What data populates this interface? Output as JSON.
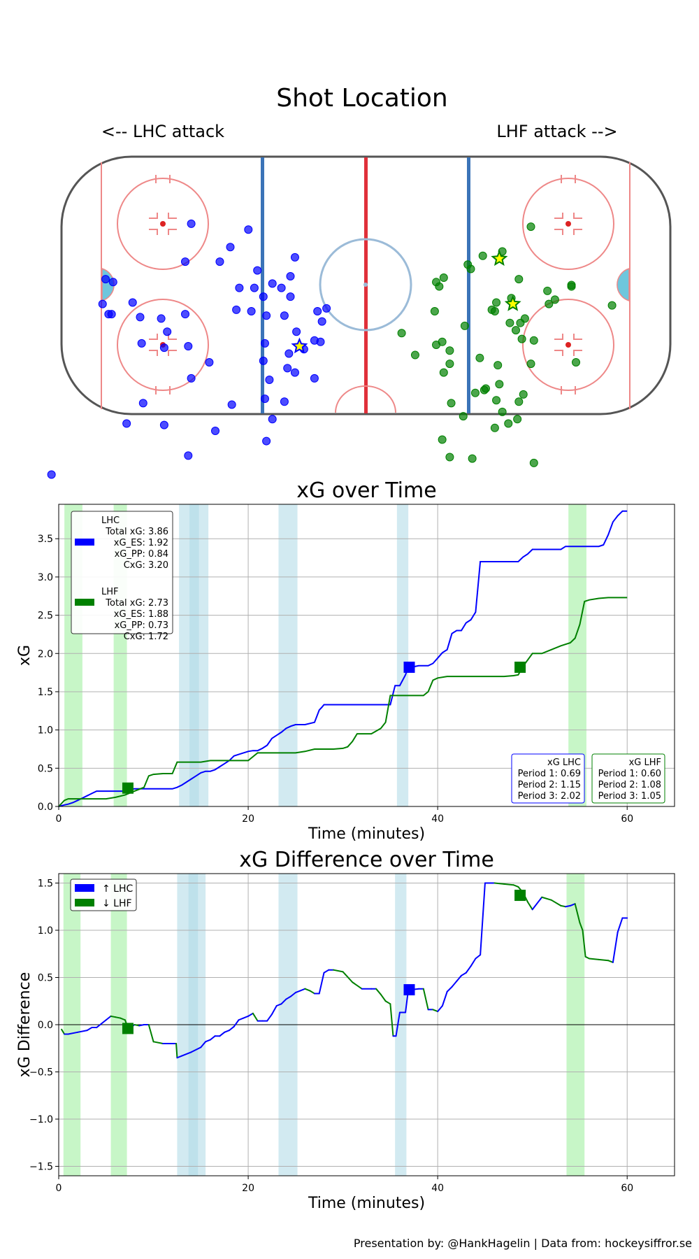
{
  "colors": {
    "lhc": "#0000ff",
    "lhf": "#008000",
    "pp_lhc": "#add8e6",
    "pp_lhf": "#90ee90",
    "goal_star": "#ffff00"
  },
  "rink": {
    "title": "Shot Location",
    "left_label": "<-- LHC attack",
    "right_label": "LHF attack -->",
    "lhc_shots": [
      [
        58.0,
        23.0
      ],
      [
        45.0,
        31.0
      ],
      [
        39.0,
        25.0
      ],
      [
        23.5,
        34.5
      ],
      [
        25.0,
        41.0
      ],
      [
        36.0,
        39.0
      ],
      [
        48.5,
        36.0
      ],
      [
        31.0,
        43.5
      ],
      [
        43.0,
        52.5
      ],
      [
        60.0,
        36.0
      ],
      [
        42.0,
        45.0
      ],
      [
        34.0,
        48.0
      ],
      [
        27.0,
        54.5
      ],
      [
        23.0,
        60.0
      ],
      [
        20.5,
        66.0
      ],
      [
        16.0,
        53.0
      ],
      [
        15.0,
        63.5
      ],
      [
        25.5,
        67.5
      ],
      [
        26.0,
        72.5
      ],
      [
        34.0,
        70.0
      ],
      [
        32.0,
        76.5
      ],
      [
        33.5,
        83.0
      ],
      [
        17.0,
        76.0
      ],
      [
        13.0,
        52.0
      ],
      [
        14.5,
        56.5
      ],
      [
        17.0,
        63.0
      ],
      [
        23.5,
        74.0
      ],
      [
        27.0,
        84.0
      ],
      [
        31.0,
        90.0
      ],
      [
        44.5,
        85.0
      ],
      [
        52.0,
        70.5
      ],
      [
        58.0,
        76.0
      ],
      [
        67.0,
        65.5
      ],
      [
        60.0,
        54.0
      ],
      [
        59.0,
        65.0
      ],
      [
        66.0,
        60.0
      ],
      [
        74.0,
        84.5
      ],
      [
        68.0,
        55.5
      ],
      [
        74.5,
        64.0
      ],
      [
        84.0,
        43.0
      ],
      [
        75.0,
        55.0
      ],
      [
        77.5,
        50.0
      ],
      [
        86.5,
        42.0
      ],
      [
        87.5,
        50.5
      ],
      [
        59.0,
        102.5
      ],
      [
        85.5,
        54.0
      ],
      [
        84.5,
        54.0
      ],
      [
        79.5,
        91.5
      ],
      [
        67.0,
        92.0
      ],
      [
        50.0,
        94.0
      ],
      [
        33.0,
        97.5
      ],
      [
        33.0,
        54.5
      ],
      [
        25.0,
        48.0
      ],
      [
        28.0,
        45.0
      ],
      [
        33.5,
        64.0
      ],
      [
        38.0,
        53.0
      ],
      [
        37.0,
        45.0
      ],
      [
        104.5,
        109.0
      ]
    ],
    "lhc_goals": [
      [
        22.0,
        65.0
      ]
    ],
    "lhf_shots": [
      [
        -55.0,
        24.0
      ],
      [
        -45.5,
        32.5
      ],
      [
        -26.0,
        41.5
      ],
      [
        -24.5,
        44.5
      ],
      [
        -23.5,
        43.0
      ],
      [
        -23.0,
        53.0
      ],
      [
        -33.0,
        58.0
      ],
      [
        -12.0,
        60.5
      ],
      [
        -16.5,
        68.0
      ],
      [
        -23.5,
        64.5
      ],
      [
        -25.5,
        63.5
      ],
      [
        -28.0,
        66.5
      ],
      [
        -26.0,
        74.0
      ],
      [
        -36.5,
        81.0
      ],
      [
        -28.5,
        84.5
      ],
      [
        -40.0,
        79.5
      ],
      [
        -43.5,
        83.5
      ],
      [
        -43.0,
        93.0
      ],
      [
        -47.5,
        91.5
      ],
      [
        -45.5,
        87.5
      ],
      [
        -50.5,
        90.0
      ],
      [
        -35.5,
        103.5
      ],
      [
        -56.0,
        105.0
      ],
      [
        -52.5,
        81.5
      ],
      [
        -28.0,
        71.0
      ],
      [
        -38.0,
        69.0
      ],
      [
        -44.5,
        78.0
      ],
      [
        -51.0,
        42.0
      ],
      [
        -48.5,
        48.5
      ],
      [
        -43.0,
        53.0
      ],
      [
        -50.0,
        59.5
      ],
      [
        -39.0,
        34.0
      ],
      [
        -39.5,
        80.0
      ],
      [
        -42.0,
        52.5
      ],
      [
        -48.0,
        57.0
      ],
      [
        -53.0,
        55.5
      ],
      [
        -34.0,
        37.0
      ],
      [
        -35.0,
        38.5
      ],
      [
        -51.5,
        57.0
      ],
      [
        -43.5,
        50.0
      ],
      [
        -52.0,
        62.5
      ],
      [
        -44.0,
        71.5
      ],
      [
        -32.5,
        89.0
      ],
      [
        -25.5,
        97.0
      ],
      [
        -28.0,
        103.0
      ],
      [
        -51.0,
        84.0
      ],
      [
        -55.0,
        71.0
      ],
      [
        -56.0,
        63.0
      ],
      [
        -70.0,
        70.5
      ],
      [
        -82.0,
        51.0
      ],
      [
        -61.0,
        50.5
      ],
      [
        -63.0,
        49.0
      ],
      [
        -60.5,
        46.0
      ],
      [
        -68.5,
        44.5
      ],
      [
        -68.5,
        44.0
      ]
    ],
    "lhf_goals": [
      [
        -44.5,
        35.0
      ],
      [
        -49.0,
        50.5
      ]
    ]
  },
  "chart_data": [
    {
      "type": "line",
      "title": "xG over Time",
      "xlabel": "Time (minutes)",
      "ylabel": "xG",
      "xlim": [
        0,
        65
      ],
      "ylim": [
        0,
        3.95
      ],
      "xticks": [
        0,
        20,
        40,
        60
      ],
      "yticks": [
        0.0,
        0.5,
        1.0,
        1.5,
        2.0,
        2.5,
        3.0,
        3.5
      ],
      "ytick_labels": [
        "0.0",
        "0.5",
        "1.0",
        "1.5",
        "2.0",
        "2.5",
        "3.0",
        "3.5"
      ],
      "series": [
        {
          "name": "LHC",
          "x": [
            0,
            0.6,
            1,
            1.5,
            2,
            2.5,
            3,
            3.5,
            4,
            4.3,
            4.6,
            5.0,
            5.5,
            6.0,
            6.5,
            7.0,
            7.4,
            8.0,
            9.0,
            10.0,
            11.0,
            12.0,
            12.5,
            13.0,
            13.5,
            14.0,
            14.5,
            15.0,
            15.5,
            16.0,
            16.5,
            17.0,
            17.5,
            18.0,
            18.5,
            19.0,
            19.5,
            20.0,
            20.5,
            21.0,
            21.5,
            22.0,
            22.5,
            23.0,
            23.5,
            24.0,
            24.5,
            25.0,
            25.5,
            26.0,
            27.0,
            27.5,
            27.8,
            28.0,
            28.5,
            29.0,
            30.0,
            31.0,
            32.0,
            33.0,
            34.0,
            35.0,
            35.5,
            36.0,
            36.6,
            36.9,
            37.2,
            38.0,
            38.5,
            39.0,
            39.5,
            40.0,
            40.5,
            41.0,
            41.5,
            42.0,
            42.5,
            43.0,
            43.5,
            44.0,
            44.5,
            45.0,
            46.0,
            47.0,
            48.5,
            49.0,
            49.5,
            50.0,
            51.0,
            52.0,
            53.0,
            53.5,
            54.0,
            55.0,
            56.0,
            57.0,
            57.5,
            58.0,
            58.5,
            59.0,
            59.5,
            60.0
          ],
          "y": [
            0,
            0.02,
            0.03,
            0.05,
            0.08,
            0.11,
            0.14,
            0.17,
            0.2,
            0.2,
            0.2,
            0.2,
            0.2,
            0.2,
            0.2,
            0.2,
            0.22,
            0.23,
            0.23,
            0.23,
            0.23,
            0.23,
            0.25,
            0.28,
            0.32,
            0.36,
            0.4,
            0.44,
            0.46,
            0.46,
            0.48,
            0.52,
            0.56,
            0.6,
            0.66,
            0.68,
            0.7,
            0.72,
            0.73,
            0.73,
            0.76,
            0.8,
            0.89,
            0.93,
            0.97,
            1.02,
            1.05,
            1.07,
            1.07,
            1.07,
            1.1,
            1.26,
            1.3,
            1.33,
            1.33,
            1.33,
            1.33,
            1.33,
            1.33,
            1.33,
            1.33,
            1.33,
            1.58,
            1.58,
            1.72,
            1.82,
            1.82,
            1.84,
            1.84,
            1.84,
            1.87,
            1.94,
            2.01,
            2.05,
            2.26,
            2.3,
            2.3,
            2.4,
            2.44,
            2.54,
            3.2,
            3.2,
            3.2,
            3.2,
            3.2,
            3.26,
            3.3,
            3.36,
            3.36,
            3.36,
            3.36,
            3.4,
            3.4,
            3.4,
            3.4,
            3.4,
            3.42,
            3.55,
            3.72,
            3.8,
            3.86,
            3.86
          ]
        },
        {
          "name": "LHF",
          "x": [
            0,
            0.6,
            1,
            1.5,
            2,
            3,
            4,
            5,
            6,
            7,
            8,
            9,
            9.5,
            10,
            11,
            12,
            12.5,
            13,
            14,
            15,
            16,
            17,
            18,
            19,
            20,
            21,
            22,
            23,
            24,
            25,
            26,
            27,
            28,
            29,
            30,
            30.5,
            31,
            31.5,
            32,
            33,
            34,
            34.5,
            35,
            35.5,
            36,
            36.5,
            37,
            37.5,
            38,
            38.5,
            39,
            39.5,
            40,
            41,
            42,
            43,
            44,
            45,
            46,
            47,
            48,
            48.5,
            49,
            50,
            51,
            52,
            53,
            54,
            54.5,
            55,
            55.5,
            56,
            57,
            58,
            59,
            60
          ],
          "y": [
            0,
            0.08,
            0.1,
            0.1,
            0.1,
            0.1,
            0.1,
            0.1,
            0.12,
            0.15,
            0.2,
            0.25,
            0.4,
            0.42,
            0.43,
            0.43,
            0.58,
            0.58,
            0.58,
            0.58,
            0.6,
            0.6,
            0.6,
            0.6,
            0.6,
            0.7,
            0.7,
            0.7,
            0.7,
            0.7,
            0.72,
            0.75,
            0.75,
            0.75,
            0.76,
            0.78,
            0.85,
            0.95,
            0.95,
            0.95,
            1.02,
            1.1,
            1.45,
            1.45,
            1.45,
            1.45,
            1.45,
            1.45,
            1.45,
            1.45,
            1.5,
            1.65,
            1.68,
            1.7,
            1.7,
            1.7,
            1.7,
            1.7,
            1.7,
            1.7,
            1.71,
            1.72,
            1.83,
            2.0,
            2.0,
            2.05,
            2.1,
            2.14,
            2.2,
            2.38,
            2.68,
            2.7,
            2.72,
            2.73,
            2.73,
            2.73
          ]
        }
      ],
      "goals": [
        {
          "team": "LHF",
          "x": 7.3,
          "y": 0.24
        },
        {
          "team": "LHC",
          "x": 37.0,
          "y": 1.82
        },
        {
          "team": "LHF",
          "x": 48.7,
          "y": 1.82
        }
      ],
      "pp_bands": [
        {
          "team": "LHF",
          "start": 0.6,
          "end": 2.5
        },
        {
          "team": "LHF",
          "start": 5.8,
          "end": 7.2
        },
        {
          "team": "LHC",
          "start": 12.7,
          "end": 14.8
        },
        {
          "team": "LHC",
          "start": 13.8,
          "end": 15.8
        },
        {
          "team": "LHC",
          "start": 23.2,
          "end": 25.2
        },
        {
          "team": "LHC",
          "start": 35.7,
          "end": 36.9
        },
        {
          "team": "LHF",
          "start": 53.8,
          "end": 55.7
        }
      ],
      "legend": {
        "lhc": [
          "LHC",
          "Total xG: 3.86",
          "xG_ES: 1.92",
          "xG_PP: 0.84",
          "CxG: 3.20"
        ],
        "lhf": [
          "LHF",
          "Total xG: 2.73",
          "xG_ES: 1.88",
          "xG_PP: 0.73",
          "CxG: 1.72"
        ]
      },
      "period_boxes": {
        "lhc": [
          "xG LHC",
          "Period 1: 0.69",
          "Period 2: 1.15",
          "Period 3: 2.02"
        ],
        "lhf": [
          "xG LHF",
          "Period 1: 0.60",
          "Period 2: 1.08",
          "Period 3: 1.05"
        ]
      }
    },
    {
      "type": "line",
      "title": "xG Difference over Time",
      "xlabel": "Time (minutes)",
      "ylabel": "xG Difference",
      "xlim": [
        0,
        65
      ],
      "ylim": [
        -1.6,
        1.6
      ],
      "xticks": [
        0,
        20,
        40,
        60
      ],
      "yticks": [
        -1.5,
        -1.0,
        -0.5,
        0.0,
        0.5,
        1.0,
        1.5
      ],
      "ytick_labels": [
        "−1.5",
        "−1.0",
        "−0.5",
        "0.0",
        "0.5",
        "1.0",
        "1.5"
      ],
      "x": [
        0.3,
        0.6,
        1,
        2,
        3,
        3.5,
        4,
        4.5,
        5,
        5.5,
        6,
        6.5,
        7,
        7.3,
        7.6,
        8,
        8.5,
        9,
        9.5,
        10,
        11,
        12,
        12.4,
        12.5,
        13,
        14,
        15,
        15.5,
        16,
        16.5,
        17,
        17.5,
        18,
        18.5,
        19,
        19.5,
        20,
        20.5,
        21,
        21.5,
        22,
        22.5,
        23,
        23.5,
        24,
        24.5,
        25,
        25.5,
        26,
        26.5,
        27,
        27.5,
        28,
        28.5,
        29,
        30,
        31,
        32,
        33,
        33.5,
        34,
        34.5,
        35,
        35.3,
        35.6,
        36,
        36.6,
        36.9,
        37.2,
        38,
        38.5,
        39,
        39.5,
        40,
        40.5,
        41,
        41.5,
        42,
        42.5,
        43,
        43.5,
        44,
        44.5,
        45,
        46,
        47,
        48,
        48.5,
        49,
        49.5,
        50,
        51,
        52,
        53,
        53.5,
        54,
        54.5,
        55,
        55.3,
        55.6,
        56,
        57,
        58,
        58.5,
        59,
        59.5,
        60
      ],
      "y": [
        -0.05,
        -0.1,
        -0.1,
        -0.08,
        -0.06,
        -0.03,
        -0.03,
        0.01,
        0.05,
        0.09,
        0.08,
        0.07,
        0.05,
        -0.03,
        -0.03,
        0.0,
        -0.01,
        0.0,
        0.0,
        -0.18,
        -0.2,
        -0.2,
        -0.2,
        -0.35,
        -0.33,
        -0.29,
        -0.24,
        -0.18,
        -0.16,
        -0.12,
        -0.12,
        -0.08,
        -0.06,
        -0.02,
        0.05,
        0.07,
        0.09,
        0.12,
        0.04,
        0.04,
        0.04,
        0.11,
        0.2,
        0.22,
        0.27,
        0.3,
        0.34,
        0.36,
        0.38,
        0.36,
        0.33,
        0.33,
        0.55,
        0.58,
        0.58,
        0.56,
        0.45,
        0.38,
        0.38,
        0.38,
        0.32,
        0.25,
        0.22,
        -0.12,
        -0.12,
        0.13,
        0.13,
        0.37,
        0.37,
        0.38,
        0.38,
        0.16,
        0.16,
        0.14,
        0.2,
        0.35,
        0.4,
        0.46,
        0.52,
        0.55,
        0.62,
        0.7,
        0.74,
        1.5,
        1.5,
        1.49,
        1.48,
        1.46,
        1.4,
        1.3,
        1.22,
        1.35,
        1.32,
        1.26,
        1.25,
        1.26,
        1.28,
        1.08,
        1.0,
        0.72,
        0.7,
        0.69,
        0.68,
        0.66,
        0.98,
        1.13,
        1.13
      ],
      "goals": [
        {
          "team": "LHF",
          "x": 7.3,
          "y": -0.04
        },
        {
          "team": "LHC",
          "x": 37.0,
          "y": 0.37
        },
        {
          "team": "LHF",
          "x": 48.7,
          "y": 1.37
        }
      ],
      "pp_bands": [
        {
          "team": "LHF",
          "start": 0.5,
          "end": 2.3
        },
        {
          "team": "LHF",
          "start": 5.5,
          "end": 7.2
        },
        {
          "team": "LHC",
          "start": 12.5,
          "end": 14.7
        },
        {
          "team": "LHC",
          "start": 13.7,
          "end": 15.5
        },
        {
          "team": "LHC",
          "start": 23.2,
          "end": 25.2
        },
        {
          "team": "LHC",
          "start": 35.5,
          "end": 36.7
        },
        {
          "team": "LHF",
          "start": 53.6,
          "end": 55.5
        }
      ],
      "legend": {
        "lhc": "↑ LHC",
        "lhf": "↓ LHF"
      }
    }
  ],
  "footer": "Presentation by: @HankHagelin | Data from: hockeysiffror.se"
}
